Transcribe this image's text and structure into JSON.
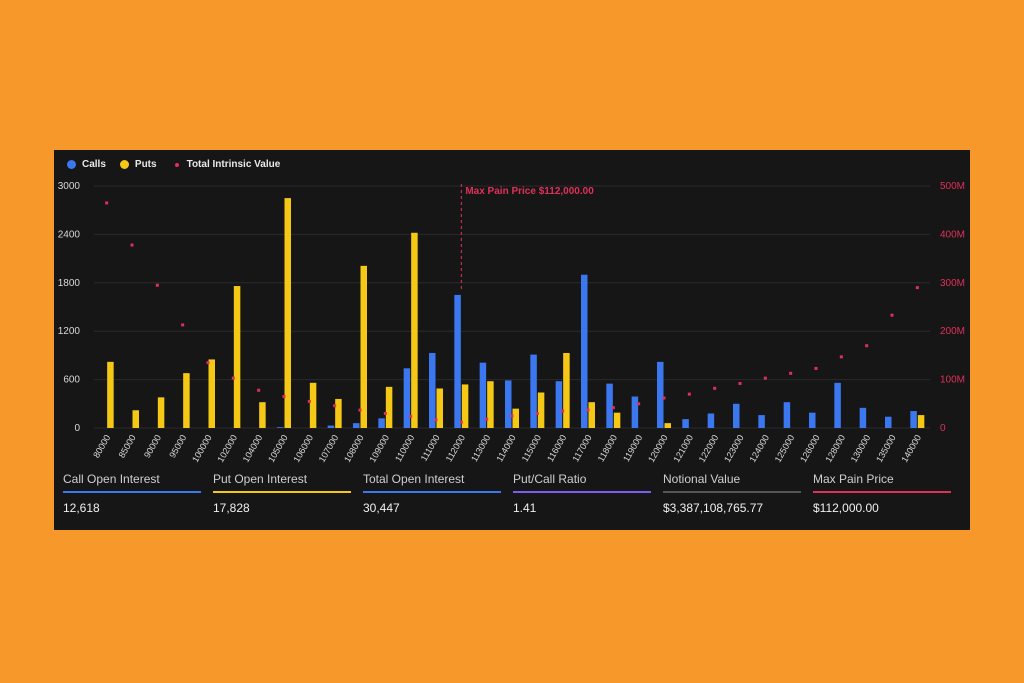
{
  "chart_data": {
    "type": "bar",
    "legend": {
      "calls_label": "Calls",
      "puts_label": "Puts",
      "intrinsic_label": "Total Intrinsic Value"
    },
    "categories": [
      "80000",
      "85000",
      "90000",
      "95000",
      "100000",
      "102000",
      "104000",
      "105000",
      "106000",
      "107000",
      "108000",
      "109000",
      "110000",
      "111000",
      "112000",
      "113000",
      "114000",
      "115000",
      "116000",
      "117000",
      "118000",
      "119000",
      "120000",
      "121000",
      "122000",
      "123000",
      "124000",
      "125000",
      "126000",
      "128000",
      "130000",
      "135000",
      "140000"
    ],
    "series": [
      {
        "name": "Calls",
        "color": "#3B78F0",
        "values": [
          0,
          0,
          0,
          0,
          0,
          0,
          0,
          10,
          0,
          30,
          60,
          120,
          740,
          930,
          1650,
          810,
          590,
          910,
          580,
          1900,
          550,
          390,
          820,
          110,
          180,
          300,
          160,
          320,
          190,
          560,
          250,
          140,
          210
        ]
      },
      {
        "name": "Puts",
        "color": "#F5C816",
        "values": [
          820,
          220,
          380,
          680,
          850,
          1760,
          320,
          2850,
          560,
          360,
          2010,
          510,
          2420,
          490,
          540,
          580,
          240,
          440,
          930,
          320,
          190,
          0,
          60,
          0,
          0,
          0,
          0,
          0,
          0,
          0,
          0,
          0,
          160
        ]
      },
      {
        "name": "Total Intrinsic Value",
        "color": "#E0305A",
        "axis": "right",
        "values_millions": [
          465,
          378,
          295,
          213,
          135,
          103,
          78,
          65,
          55,
          46,
          37,
          30,
          24,
          17,
          12,
          18,
          25,
          30,
          35,
          37,
          42,
          50,
          62,
          70,
          82,
          92,
          103,
          113,
          123,
          147,
          170,
          233,
          290
        ]
      }
    ],
    "y_left": {
      "ticks": [
        "3000",
        "2400",
        "1800",
        "1200",
        "600",
        "0"
      ],
      "lim": [
        0,
        3000
      ]
    },
    "y_right": {
      "ticks": [
        "500M",
        "400M",
        "300M",
        "200M",
        "100M",
        "0"
      ],
      "lim": [
        0,
        500
      ]
    },
    "marker": {
      "label": "Max Pain Price $112,000.00",
      "category": "112000"
    },
    "colors": {
      "calls": "#3B78F0",
      "puts": "#F5C816",
      "intrinsic": "#E0305A",
      "grid": "#2a2a2a",
      "text": "#d8d8d8"
    }
  },
  "stats": [
    {
      "label": "Call Open Interest",
      "value": "12,618",
      "color": "#3B78F0"
    },
    {
      "label": "Put Open Interest",
      "value": "17,828",
      "color": "#F5C816"
    },
    {
      "label": "Total Open Interest",
      "value": "30,447",
      "color": "#3B78F0"
    },
    {
      "label": "Put/Call Ratio",
      "value": "1.41",
      "color": "#7D5CF0"
    },
    {
      "label": "Notional Value",
      "value": "$3,387,108,765.77",
      "color": "#555555"
    },
    {
      "label": "Max Pain Price",
      "value": "$112,000.00",
      "color": "#E0305A"
    }
  ]
}
